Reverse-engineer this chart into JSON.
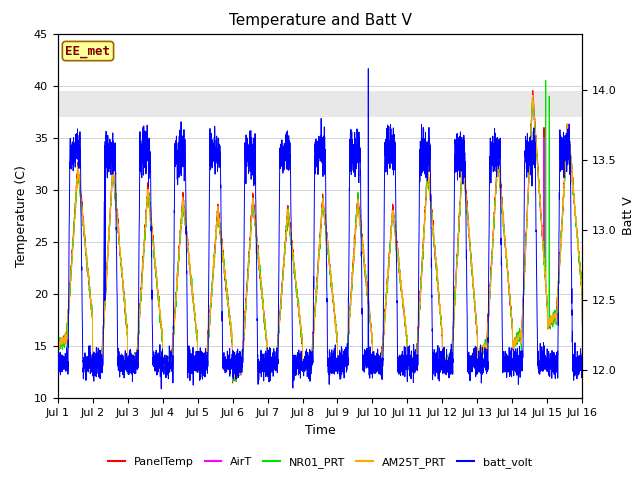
{
  "title": "Temperature and Batt V",
  "xlabel": "Time",
  "ylabel_left": "Temperature (C)",
  "ylabel_right": "Batt V",
  "station_label": "EE_met",
  "ylim_left": [
    10,
    45
  ],
  "ylim_right": [
    11.8,
    14.4
  ],
  "xlim": [
    0,
    15
  ],
  "x_ticks": [
    0,
    1,
    2,
    3,
    4,
    5,
    6,
    7,
    8,
    9,
    10,
    11,
    12,
    13,
    14,
    15
  ],
  "x_tick_labels": [
    "Jul 1",
    "Jul 2",
    "Jul 3",
    "Jul 4",
    "Jul 5",
    "Jul 6",
    "Jul 7",
    "Jul 8",
    "Jul 9",
    "Jul 10",
    "Jul 11",
    "Jul 12",
    "Jul 13",
    "Jul 14",
    "Jul 15",
    "Jul 16"
  ],
  "shade_ymin": 37.0,
  "shade_ymax": 39.5,
  "shade_color": "#e8e8e8",
  "series_colors": {
    "PanelTemp": "#ff0000",
    "AirT": "#ff00ff",
    "NR01_PRT": "#00dd00",
    "AM25T_PRT": "#ffaa00",
    "batt_volt": "#0000ff"
  },
  "background_color": "#ffffff",
  "plot_bg_color": "#ffffff",
  "grid_color": "#cccccc",
  "title_fontsize": 11,
  "label_fontsize": 9,
  "tick_fontsize": 8,
  "legend_fontsize": 8,
  "linewidth": 0.7
}
